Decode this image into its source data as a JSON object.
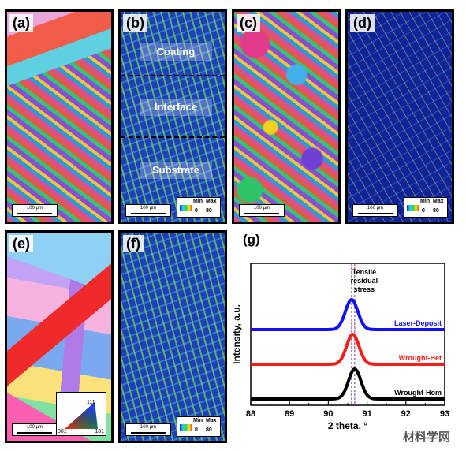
{
  "panels": {
    "a": {
      "label": "(a)",
      "scale": "100 µm"
    },
    "b": {
      "label": "(b)",
      "scale": "100 µm",
      "zones": [
        "Coating",
        "Interface",
        "Substrate"
      ],
      "legend": {
        "min_label": "Min",
        "max_label": "Max",
        "min": "0",
        "max": "80"
      }
    },
    "c": {
      "label": "(c)",
      "scale": "100 µm"
    },
    "d": {
      "label": "(d)",
      "scale": "100 µm",
      "legend": {
        "min_label": "Min",
        "max_label": "Max",
        "min": "0",
        "max": "80"
      }
    },
    "e": {
      "label": "(e)",
      "scale": "100 µm",
      "ipf": {
        "top": "111",
        "left": "001",
        "right": "101"
      }
    },
    "f": {
      "label": "(f)",
      "scale": "100 µm",
      "legend": {
        "min_label": "Min",
        "max_label": "Max",
        "min": "0",
        "max": "80"
      }
    },
    "g": {
      "label": "(g)"
    }
  },
  "watermark": "材料学网",
  "chart_data": {
    "type": "line",
    "xlabel": "2 theta, °",
    "ylabel": "Intensity, a.u.",
    "xlim": [
      88,
      93
    ],
    "xticks": [
      "88",
      "89",
      "90",
      "91",
      "92",
      "93"
    ],
    "annotation": "Tensile residual stress",
    "series": [
      {
        "name": "Laser-Deposit",
        "color": "#1010ff",
        "center": 90.6,
        "offset": 2.0
      },
      {
        "name": "Wrought-Het",
        "color": "#ff1a1a",
        "center": 90.63,
        "offset": 1.0
      },
      {
        "name": "Wrought-Hom",
        "color": "#000000",
        "center": 90.68,
        "offset": 0.0
      }
    ],
    "reference_lines": [
      90.6,
      90.68
    ]
  }
}
